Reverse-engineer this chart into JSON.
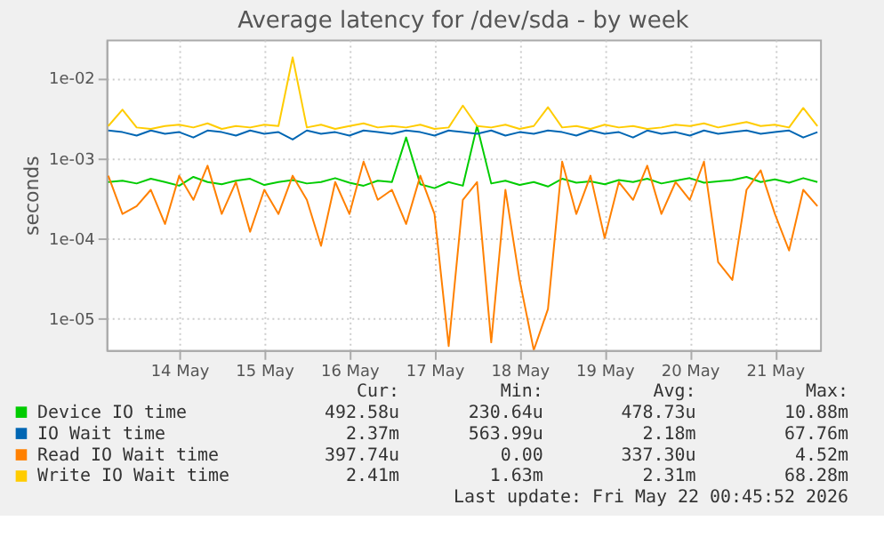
{
  "chart_data": {
    "type": "line",
    "title": "Average latency for /dev/sda - by week",
    "ylabel": "seconds",
    "log": "y",
    "grid": true,
    "legend": "bottom",
    "marker": "none",
    "line_style": "solid",
    "xlim": [
      "2026-05-13T15:30",
      "2026-05-22T00:45"
    ],
    "xticks": [
      {
        "value": "2026-05-14T12:00",
        "label": "14 May"
      },
      {
        "value": "2026-05-15T12:00",
        "label": "15 May"
      },
      {
        "value": "2026-05-16T12:00",
        "label": "16 May"
      },
      {
        "value": "2026-05-17T12:00",
        "label": "17 May"
      },
      {
        "value": "2026-05-18T12:00",
        "label": "18 May"
      },
      {
        "value": "2026-05-19T12:00",
        "label": "19 May"
      },
      {
        "value": "2026-05-20T12:00",
        "label": "20 May"
      },
      {
        "value": "2026-05-21T12:00",
        "label": "21 May"
      }
    ],
    "ylim": [
      4e-06,
      0.03
    ],
    "yticks": [
      {
        "value": 1e-05,
        "label": "1e-05"
      },
      {
        "value": 0.0001,
        "label": "1e-04"
      },
      {
        "value": 0.001,
        "label": "1e-03"
      },
      {
        "value": 0.01,
        "label": "1e-02"
      }
    ],
    "x": [
      "2026-05-13T16:00",
      "2026-05-13T20:00",
      "2026-05-14T00:00",
      "2026-05-14T04:00",
      "2026-05-14T08:00",
      "2026-05-14T12:00",
      "2026-05-14T16:00",
      "2026-05-14T20:00",
      "2026-05-15T00:00",
      "2026-05-15T04:00",
      "2026-05-15T08:00",
      "2026-05-15T12:00",
      "2026-05-15T16:00",
      "2026-05-15T20:00",
      "2026-05-16T00:00",
      "2026-05-16T04:00",
      "2026-05-16T08:00",
      "2026-05-16T12:00",
      "2026-05-16T16:00",
      "2026-05-16T20:00",
      "2026-05-17T00:00",
      "2026-05-17T04:00",
      "2026-05-17T08:00",
      "2026-05-17T12:00",
      "2026-05-17T16:00",
      "2026-05-17T20:00",
      "2026-05-18T00:00",
      "2026-05-18T04:00",
      "2026-05-18T08:00",
      "2026-05-18T12:00",
      "2026-05-18T16:00",
      "2026-05-18T20:00",
      "2026-05-19T00:00",
      "2026-05-19T04:00",
      "2026-05-19T08:00",
      "2026-05-19T12:00",
      "2026-05-19T16:00",
      "2026-05-19T20:00",
      "2026-05-20T00:00",
      "2026-05-20T04:00",
      "2026-05-20T08:00",
      "2026-05-20T12:00",
      "2026-05-20T16:00",
      "2026-05-20T20:00",
      "2026-05-21T00:00",
      "2026-05-21T04:00",
      "2026-05-21T08:00",
      "2026-05-21T12:00",
      "2026-05-21T16:00",
      "2026-05-21T20:00",
      "2026-05-22T00:00"
    ],
    "series": [
      {
        "name": "Device IO time",
        "color": "#00cc00",
        "values": [
          0.0005,
          0.00052,
          0.00048,
          0.00055,
          0.0005,
          0.00045,
          0.00058,
          0.0005,
          0.00047,
          0.00052,
          0.00055,
          0.00046,
          0.0005,
          0.00053,
          0.00048,
          0.0005,
          0.00056,
          0.00049,
          0.00045,
          0.00052,
          0.0005,
          0.0018,
          0.00047,
          0.00042,
          0.0005,
          0.00045,
          0.0025,
          0.00048,
          0.00052,
          0.00046,
          0.0005,
          0.00044,
          0.00055,
          0.00049,
          0.00051,
          0.00047,
          0.00053,
          0.0005,
          0.00055,
          0.00048,
          0.00052,
          0.00056,
          0.00049,
          0.00051,
          0.00053,
          0.00058,
          0.0005,
          0.00054,
          0.00049,
          0.00056,
          0.0005
        ]
      },
      {
        "name": "IO Wait time",
        "color": "#0066b3",
        "values": [
          0.0022,
          0.0021,
          0.0019,
          0.0022,
          0.002,
          0.0021,
          0.0018,
          0.0022,
          0.0021,
          0.0019,
          0.0022,
          0.002,
          0.0021,
          0.0017,
          0.0022,
          0.002,
          0.0021,
          0.0019,
          0.0022,
          0.0021,
          0.002,
          0.0022,
          0.0021,
          0.0019,
          0.0022,
          0.0021,
          0.002,
          0.0022,
          0.0019,
          0.0021,
          0.002,
          0.0022,
          0.0021,
          0.0019,
          0.0022,
          0.002,
          0.0021,
          0.0018,
          0.0022,
          0.002,
          0.0021,
          0.0019,
          0.0022,
          0.002,
          0.0021,
          0.0022,
          0.002,
          0.0021,
          0.0022,
          0.0018,
          0.0021
        ]
      },
      {
        "name": "Read IO Wait time",
        "color": "#ff8000",
        "values": [
          0.0006,
          0.0002,
          0.00025,
          0.0004,
          0.00015,
          0.0006,
          0.0003,
          0.0008,
          0.0002,
          0.0005,
          0.00012,
          0.0004,
          0.0002,
          0.0006,
          0.0003,
          8e-05,
          0.0005,
          0.0002,
          0.0009,
          0.0003,
          0.0004,
          0.00015,
          0.0006,
          0.0002,
          4.5e-06,
          0.0003,
          0.0005,
          5e-06,
          0.0004,
          3e-05,
          4e-06,
          1.3e-05,
          0.0009,
          0.0002,
          0.0006,
          0.0001,
          0.0005,
          0.0003,
          0.0008,
          0.0002,
          0.0005,
          0.0003,
          0.0009,
          5e-05,
          3e-05,
          0.0004,
          0.0007,
          0.0002,
          7e-05,
          0.0004,
          0.00025
        ]
      },
      {
        "name": "Write IO Wait time",
        "color": "#ffcc00",
        "values": [
          0.0025,
          0.004,
          0.0024,
          0.0023,
          0.0025,
          0.0026,
          0.0024,
          0.0027,
          0.0023,
          0.0025,
          0.0024,
          0.0026,
          0.0025,
          0.018,
          0.0024,
          0.0026,
          0.0023,
          0.0025,
          0.0027,
          0.0024,
          0.0025,
          0.0024,
          0.0026,
          0.0023,
          0.0024,
          0.0045,
          0.0025,
          0.0024,
          0.0026,
          0.0023,
          0.0025,
          0.0043,
          0.0024,
          0.0025,
          0.0023,
          0.0026,
          0.0024,
          0.0025,
          0.0023,
          0.0024,
          0.0026,
          0.0025,
          0.0027,
          0.0024,
          0.0026,
          0.0028,
          0.0025,
          0.0026,
          0.0024,
          0.0042,
          0.0025
        ]
      }
    ],
    "annotations": [
      "Cur:",
      "Min:",
      "Avg:",
      "Max:",
      "492.58u",
      "230.64u",
      "478.73u",
      "10.88m",
      "2.37m",
      "563.99u",
      "2.18m",
      "67.76m",
      "397.74u",
      "0.00",
      "337.30u",
      "4.52m",
      "2.41m",
      "1.63m",
      "2.31m",
      "68.28m",
      "Last update: Fri May 22 00:45:52 2026"
    ]
  }
}
